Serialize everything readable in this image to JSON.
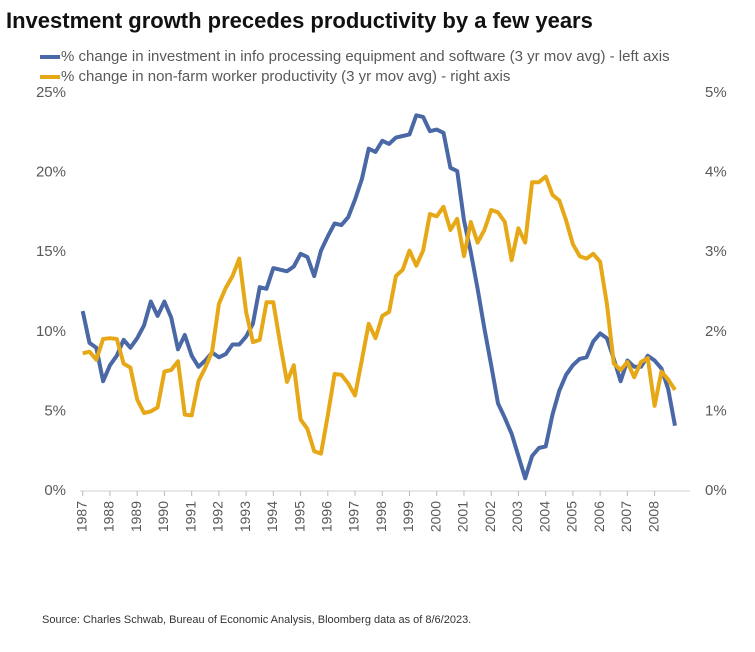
{
  "chart_data": {
    "type": "line",
    "title": "Investment growth precedes productivity by a few years",
    "source": "Source: Charles Schwab, Bureau of Economic Analysis, Bloomberg data as of 8/6/2023.",
    "x": [
      1987,
      1987.25,
      1987.5,
      1987.75,
      1988,
      1988.25,
      1988.5,
      1988.75,
      1989,
      1989.25,
      1989.5,
      1989.75,
      1990,
      1990.25,
      1990.5,
      1990.75,
      1991,
      1991.25,
      1991.5,
      1991.75,
      1992,
      1992.25,
      1992.5,
      1992.75,
      1993,
      1993.25,
      1993.5,
      1993.75,
      1994,
      1994.25,
      1994.5,
      1994.75,
      1995,
      1995.25,
      1995.5,
      1995.75,
      1996,
      1996.25,
      1996.5,
      1996.75,
      1997,
      1997.25,
      1997.5,
      1997.75,
      1998,
      1998.25,
      1998.5,
      1998.75,
      1999,
      1999.25,
      1999.5,
      1999.75,
      2000,
      2000.25,
      2000.5,
      2000.75,
      2001,
      2001.25,
      2001.5,
      2001.75,
      2002,
      2002.25,
      2002.5,
      2002.75,
      2003,
      2003.25,
      2003.5,
      2003.75,
      2004,
      2004.25,
      2004.5,
      2004.75,
      2005,
      2005.25,
      2005.5,
      2005.75,
      2006,
      2006.25,
      2006.5,
      2006.75,
      2007,
      2007.25,
      2007.5,
      2007.75,
      2008,
      2008.25,
      2008.5,
      2008.75
    ],
    "xlim": [
      1986.9,
      2009.3
    ],
    "xticks": [
      1987,
      1988,
      1989,
      1990,
      1991,
      1992,
      1993,
      1994,
      1995,
      1996,
      1997,
      1998,
      1999,
      2000,
      2001,
      2002,
      2003,
      2004,
      2005,
      2006,
      2007,
      2008
    ],
    "ylim": [
      0,
      25
    ],
    "yticks": [
      {
        "value": 0,
        "label": "0%"
      },
      {
        "value": 5,
        "label": "5%"
      },
      {
        "value": 10,
        "label": "10%"
      },
      {
        "value": 15,
        "label": "15%"
      },
      {
        "value": 20,
        "label": "20%"
      },
      {
        "value": 25,
        "label": "25%"
      }
    ],
    "y2lim": [
      0,
      5
    ],
    "y2ticks": [
      {
        "value": 0,
        "label": "0%"
      },
      {
        "value": 1,
        "label": "1%"
      },
      {
        "value": 2,
        "label": "2%"
      },
      {
        "value": 3,
        "label": "3%"
      },
      {
        "value": 4,
        "label": "4%"
      },
      {
        "value": 5,
        "label": "5%"
      }
    ],
    "grid": false,
    "series": [
      {
        "name": "% change in investment in info processing equipment and software (3 yr mov avg) - left axis",
        "color": "#4a68a6",
        "axis": "y",
        "values": [
          11.3,
          9.3,
          9.0,
          6.9,
          7.9,
          8.5,
          9.5,
          9.0,
          9.6,
          10.4,
          11.9,
          11.0,
          11.9,
          10.9,
          8.9,
          9.8,
          8.5,
          7.8,
          8.2,
          8.7,
          8.4,
          8.6,
          9.2,
          9.2,
          9.7,
          10.5,
          12.8,
          12.7,
          14.0,
          13.9,
          13.8,
          14.1,
          14.9,
          14.7,
          13.5,
          15.1,
          16.0,
          16.8,
          16.7,
          17.2,
          18.3,
          19.6,
          21.5,
          21.3,
          22.0,
          21.8,
          22.2,
          22.3,
          22.4,
          23.6,
          23.5,
          22.6,
          22.7,
          22.5,
          20.3,
          20.1,
          17.0,
          15.0,
          12.7,
          10.2,
          7.9,
          5.5,
          4.6,
          3.6,
          2.2,
          0.8,
          2.2,
          2.7,
          2.8,
          4.8,
          6.3,
          7.3,
          7.9,
          8.3,
          8.4,
          9.4,
          9.9,
          9.6,
          8.3,
          6.9,
          8.2,
          7.8,
          7.8,
          8.5,
          8.2,
          7.7,
          6.4,
          4.1
        ]
      },
      {
        "name": "% change in non-farm worker productivity (3 yr mov avg) - right axis",
        "color": "#e6a817",
        "axis": "y2",
        "values": [
          1.73,
          1.75,
          1.65,
          1.91,
          1.92,
          1.91,
          1.6,
          1.55,
          1.15,
          0.98,
          1.0,
          1.05,
          1.5,
          1.52,
          1.63,
          0.96,
          0.95,
          1.38,
          1.55,
          1.75,
          2.35,
          2.55,
          2.7,
          2.92,
          2.25,
          1.87,
          1.9,
          2.37,
          2.37,
          1.85,
          1.37,
          1.58,
          0.9,
          0.78,
          0.5,
          0.47,
          0.95,
          1.47,
          1.46,
          1.35,
          1.2,
          1.65,
          2.1,
          1.92,
          2.2,
          2.25,
          2.7,
          2.78,
          3.02,
          2.83,
          3.02,
          3.48,
          3.45,
          3.57,
          3.28,
          3.42,
          2.95,
          3.38,
          3.12,
          3.28,
          3.53,
          3.5,
          3.38,
          2.9,
          3.3,
          3.12,
          3.88,
          3.88,
          3.95,
          3.72,
          3.65,
          3.4,
          3.1,
          2.95,
          2.92,
          2.98,
          2.88,
          2.35,
          1.6,
          1.52,
          1.62,
          1.43,
          1.62,
          1.67,
          1.07,
          1.5,
          1.4,
          1.27
        ]
      }
    ]
  }
}
